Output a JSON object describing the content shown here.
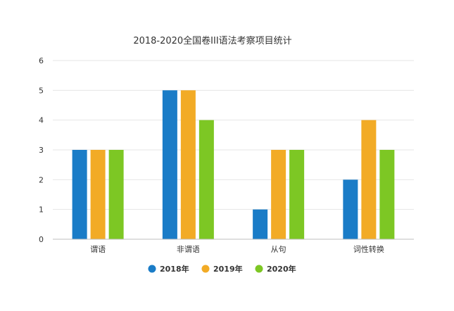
{
  "chart_data": {
    "type": "bar",
    "title": "2018-2020全国卷III语法考察项目统计",
    "xlabel": "",
    "ylabel": "",
    "categories": [
      "谓语",
      "非谓语",
      "从句",
      "词性转换"
    ],
    "series": [
      {
        "name": "2018年",
        "values": [
          3,
          5,
          1,
          2
        ],
        "color": "#1a7cc7"
      },
      {
        "name": "2019年",
        "values": [
          3,
          5,
          3,
          4
        ],
        "color": "#f2ab26"
      },
      {
        "name": "2020年",
        "values": [
          3,
          4,
          3,
          3
        ],
        "color": "#7dc724"
      }
    ],
    "ylim": [
      0,
      6
    ],
    "yticks": [
      0,
      1,
      2,
      3,
      4,
      5,
      6
    ],
    "grid": true,
    "legend_position": "bottom-center"
  }
}
